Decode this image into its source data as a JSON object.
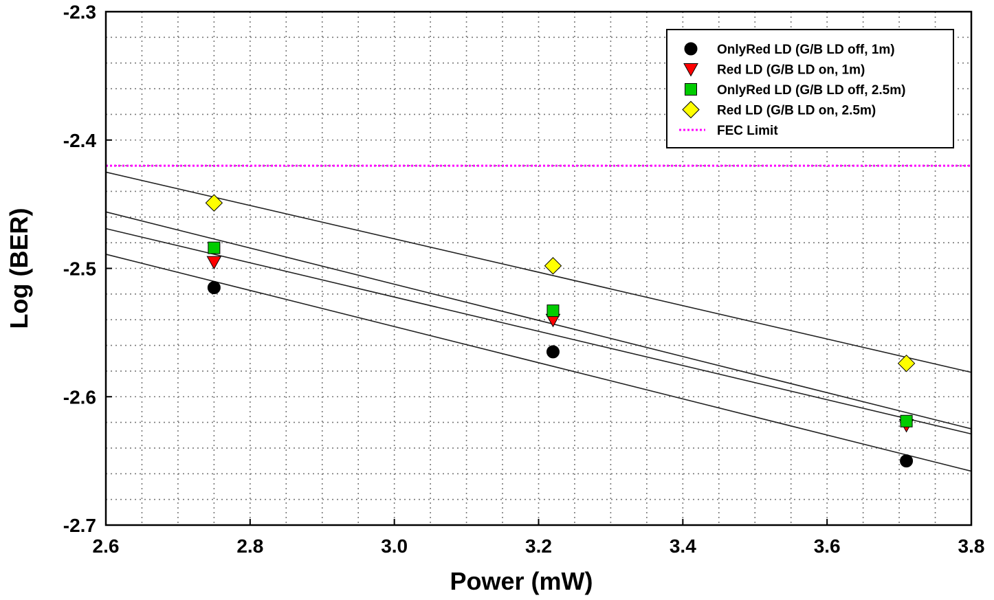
{
  "chart_data": {
    "type": "scatter",
    "title": "",
    "xlabel": "Power (mW)",
    "ylabel": "Log (BER)",
    "xlim": [
      2.6,
      3.8
    ],
    "ylim": [
      -2.7,
      -2.3
    ],
    "x_ticks": [
      "2.6",
      "2.8",
      "3.0",
      "3.2",
      "3.4",
      "3.6",
      "3.8"
    ],
    "y_ticks": [
      "-2.3",
      "-2.4",
      "-2.5",
      "-2.6",
      "-2.7"
    ],
    "grid": true,
    "legend_position": "top-right",
    "series": [
      {
        "name": "OnlyRed LD (G/B LD off, 1m)",
        "marker": "circle",
        "color": "#000000",
        "x": [
          2.75,
          3.22,
          3.71
        ],
        "y": [
          -2.515,
          -2.565,
          -2.65
        ],
        "fit": [
          [
            2.6,
            -2.489
          ],
          [
            3.8,
            -2.658
          ]
        ]
      },
      {
        "name": "Red LD (G/B LD on, 1m)",
        "marker": "triangle-down",
        "color": "#ff0000",
        "x": [
          2.75,
          3.22,
          3.71
        ],
        "y": [
          -2.495,
          -2.54,
          -2.622
        ],
        "fit": [
          [
            2.6,
            -2.469
          ],
          [
            3.8,
            -2.629
          ]
        ]
      },
      {
        "name": "OnlyRed LD (G/B LD off, 2.5m)",
        "marker": "square",
        "color": "#00cc00",
        "x": [
          2.75,
          3.22,
          3.71
        ],
        "y": [
          -2.484,
          -2.533,
          -2.619
        ],
        "fit": [
          [
            2.6,
            -2.456
          ],
          [
            3.8,
            -2.625
          ]
        ]
      },
      {
        "name": "Red LD (G/B LD on, 2.5m)",
        "marker": "diamond",
        "color": "#ffff00",
        "x": [
          2.75,
          3.22,
          3.71
        ],
        "y": [
          -2.449,
          -2.498,
          -2.574
        ],
        "fit": [
          [
            2.6,
            -2.425
          ],
          [
            3.8,
            -2.581
          ]
        ]
      },
      {
        "name": "FEC Limit",
        "marker": "dotted-line",
        "color": "#ff00ff",
        "y_constant": -2.42
      }
    ]
  }
}
